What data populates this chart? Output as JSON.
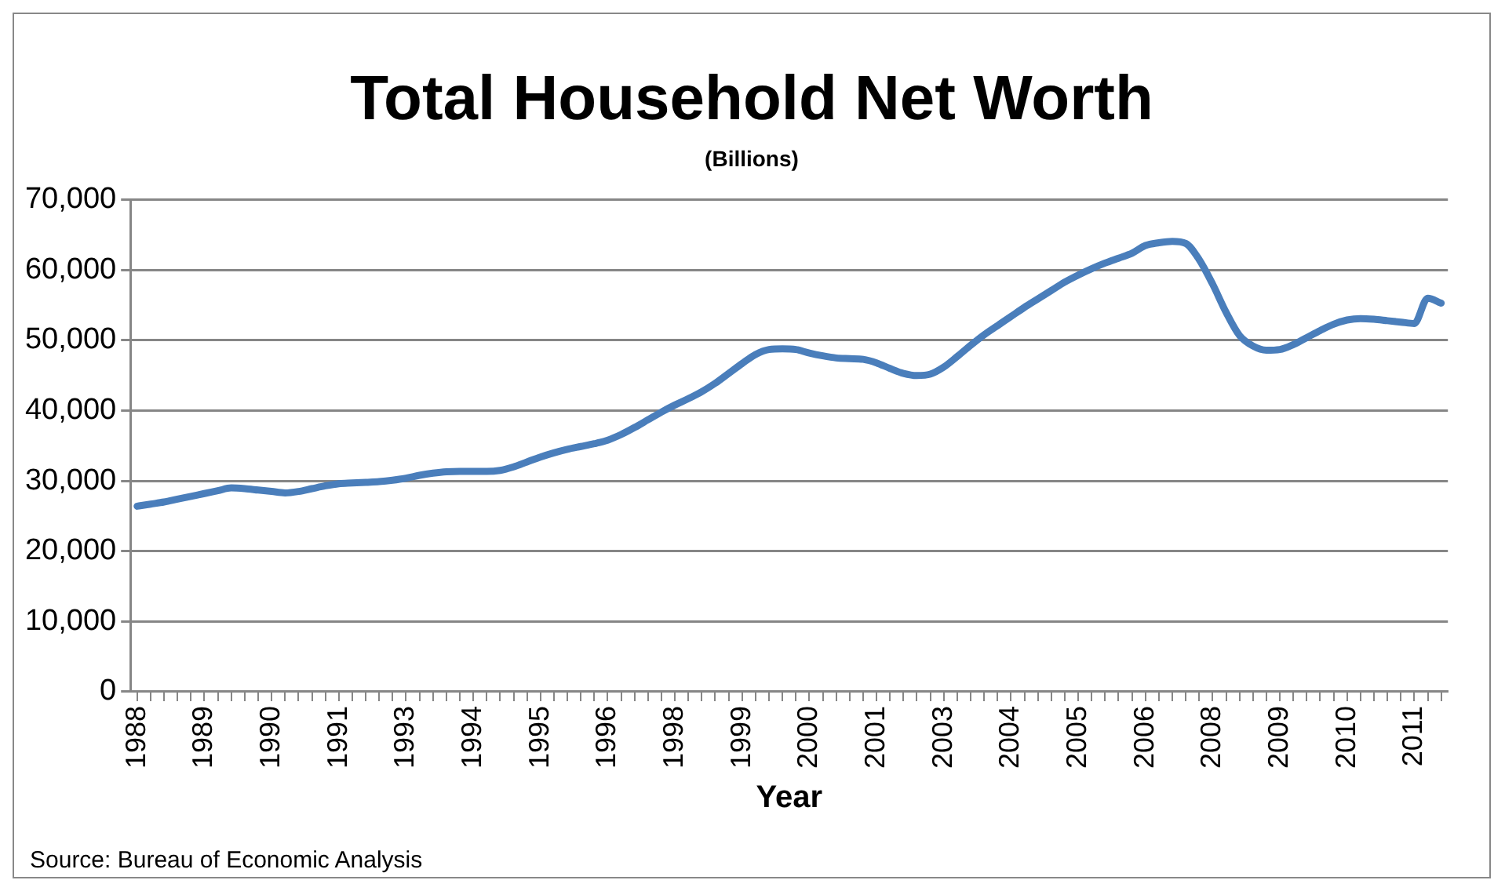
{
  "chart_data": {
    "type": "line",
    "title": "Total Household Net Worth",
    "subtitle": "(Billions)",
    "xlabel": "Year",
    "annotations": [
      "Source: Bureau of Economic Analysis"
    ],
    "categories": [
      "1988",
      null,
      null,
      null,
      null,
      "1989",
      null,
      null,
      null,
      null,
      "1990",
      null,
      null,
      null,
      null,
      "1991",
      null,
      null,
      null,
      null,
      "1993",
      null,
      null,
      null,
      null,
      "1994",
      null,
      null,
      null,
      null,
      "1995",
      null,
      null,
      null,
      null,
      "1996",
      null,
      null,
      null,
      null,
      "1998",
      null,
      null,
      null,
      null,
      "1999",
      null,
      null,
      null,
      null,
      "2000",
      null,
      null,
      null,
      null,
      "2001",
      null,
      null,
      null,
      null,
      "2003",
      null,
      null,
      null,
      null,
      "2004",
      null,
      null,
      null,
      null,
      "2005",
      null,
      null,
      null,
      null,
      "2006",
      null,
      null,
      null,
      null,
      "2008",
      null,
      null,
      null,
      null,
      "2009",
      null,
      null,
      null,
      null,
      "2010",
      null,
      null,
      null,
      null,
      "2011",
      null,
      null
    ],
    "series": [
      {
        "color": "#4a7ebb",
        "values": [
          26400,
          26700,
          27000,
          27400,
          27800,
          28200,
          28600,
          29000,
          28900,
          28700,
          28500,
          28300,
          28500,
          28900,
          29300,
          29600,
          29700,
          29800,
          29900,
          30100,
          30400,
          30800,
          31100,
          31300,
          31350,
          31350,
          31350,
          31500,
          32000,
          32700,
          33400,
          34000,
          34500,
          34900,
          35300,
          35800,
          36600,
          37600,
          38700,
          39800,
          40800,
          41700,
          42700,
          43900,
          45300,
          46700,
          48000,
          48700,
          48800,
          48700,
          48200,
          47800,
          47500,
          47400,
          47300,
          46800,
          46000,
          45300,
          45000,
          45200,
          46200,
          47700,
          49300,
          50800,
          52100,
          53400,
          54700,
          55900,
          57100,
          58300,
          59300,
          60200,
          61000,
          61700,
          62400,
          63500,
          63900,
          64100,
          63800,
          61500,
          58000,
          54000,
          50700,
          49200,
          48600,
          48700,
          49400,
          50400,
          51400,
          52300,
          52900,
          53100,
          53000,
          52800,
          52600,
          52400,
          56000,
          55300
        ]
      }
    ],
    "ylim": [
      0,
      70000
    ],
    "yticks": [
      {
        "value": 0,
        "label": "0"
      },
      {
        "value": 10000,
        "label": "10,000"
      },
      {
        "value": 20000,
        "label": "20,000"
      },
      {
        "value": 30000,
        "label": "30,000"
      },
      {
        "value": 40000,
        "label": "40,000"
      },
      {
        "value": 50000,
        "label": "50,000"
      },
      {
        "value": 60000,
        "label": "60,000"
      },
      {
        "value": 70000,
        "label": "70,000"
      }
    ],
    "grid": "y",
    "legend": false,
    "marker": "none",
    "line_style": "solid"
  }
}
